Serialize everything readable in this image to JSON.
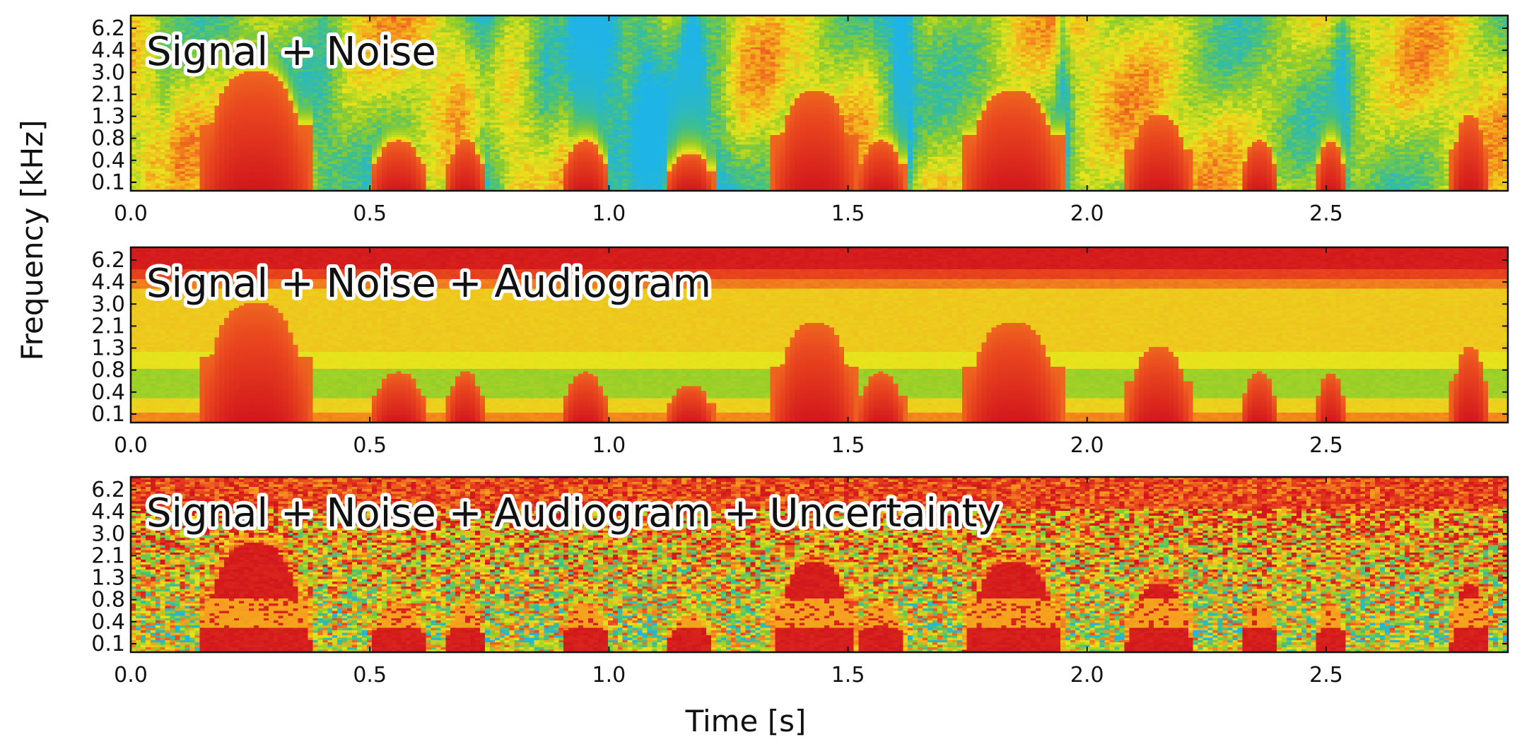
{
  "chart_data": {
    "type": "heatmap",
    "figure": {
      "xlabel": "Time [s]",
      "ylabel": "Frequency [kHz]"
    },
    "xlim": [
      0.0,
      2.88
    ],
    "x_ticks": [
      "0.0",
      "0.5",
      "1.0",
      "1.5",
      "2.0",
      "2.5"
    ],
    "x_tick_values": [
      0.0,
      0.5,
      1.0,
      1.5,
      2.0,
      2.5
    ],
    "y_ticks": [
      "0.1",
      "0.4",
      "0.8",
      "1.3",
      "2.1",
      "3.0",
      "4.4",
      "6.2"
    ],
    "colormap": [
      "#1fb4e6",
      "#3fbf8a",
      "#8fcc2a",
      "#e8e41c",
      "#f5a31e",
      "#ea4a1f",
      "#d2161c"
    ],
    "panels": [
      {
        "title": "Signal + Noise",
        "layers": [
          "signal",
          "noise"
        ],
        "speech_bursts": [
          {
            "t0": 0.14,
            "t1": 0.38,
            "peak_kHz": 2.8
          },
          {
            "t0": 0.5,
            "t1": 0.62,
            "peak_kHz": 0.8
          },
          {
            "t0": 0.66,
            "t1": 0.74,
            "peak_kHz": 0.8
          },
          {
            "t0": 0.9,
            "t1": 1.0,
            "peak_kHz": 0.8
          },
          {
            "t0": 1.12,
            "t1": 1.22,
            "peak_kHz": 0.6
          },
          {
            "t0": 1.34,
            "t1": 1.52,
            "peak_kHz": 2.1
          },
          {
            "t0": 1.52,
            "t1": 1.62,
            "peak_kHz": 0.8
          },
          {
            "t0": 1.74,
            "t1": 1.95,
            "peak_kHz": 2.1
          },
          {
            "t0": 2.08,
            "t1": 2.22,
            "peak_kHz": 1.3
          },
          {
            "t0": 2.32,
            "t1": 2.4,
            "peak_kHz": 0.8
          },
          {
            "t0": 2.48,
            "t1": 2.54,
            "peak_kHz": 0.8
          },
          {
            "t0": 2.76,
            "t1": 2.84,
            "peak_kHz": 1.3
          }
        ]
      },
      {
        "title": "Signal + Noise + Audiogram",
        "layers": [
          "signal",
          "noise",
          "audiogram"
        ]
      },
      {
        "title": "Signal + Noise + Audiogram + Uncertainty",
        "layers": [
          "signal",
          "noise",
          "audiogram",
          "uncertainty"
        ]
      }
    ]
  }
}
